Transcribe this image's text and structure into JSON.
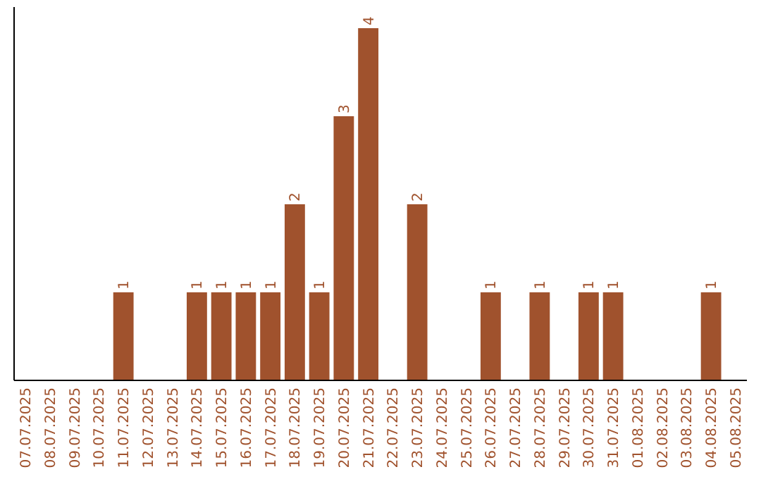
{
  "chart_data": {
    "type": "bar",
    "categories": [
      "07.07.2025",
      "08.07.2025",
      "09.07.2025",
      "10.07.2025",
      "11.07.2025",
      "12.07.2025",
      "13.07.2025",
      "14.07.2025",
      "15.07.2025",
      "16.07.2025",
      "17.07.2025",
      "18.07.2025",
      "19.07.2025",
      "20.07.2025",
      "21.07.2025",
      "22.07.2025",
      "23.07.2025",
      "24.07.2025",
      "25.07.2025",
      "26.07.2025",
      "27.07.2025",
      "28.07.2025",
      "29.07.2025",
      "30.07.2025",
      "31.07.2025",
      "01.08.2025",
      "02.08.2025",
      "03.08.2025",
      "04.08.2025",
      "05.08.2025"
    ],
    "values": [
      0,
      0,
      0,
      0,
      1,
      0,
      0,
      1,
      1,
      1,
      1,
      2,
      1,
      3,
      4,
      0,
      2,
      0,
      0,
      1,
      0,
      1,
      0,
      1,
      1,
      0,
      0,
      0,
      1,
      0
    ],
    "value_labels": [
      null,
      null,
      null,
      null,
      "1",
      null,
      null,
      "1",
      "1",
      "1",
      "1",
      "2",
      "1",
      "3",
      "4",
      null,
      "2",
      null,
      null,
      "1",
      null,
      "1",
      null,
      "1",
      "1",
      null,
      null,
      null,
      "1",
      null
    ],
    "color": "#a0522d",
    "ylim": [
      0,
      4.24
    ],
    "tick_labels": "x"
  }
}
